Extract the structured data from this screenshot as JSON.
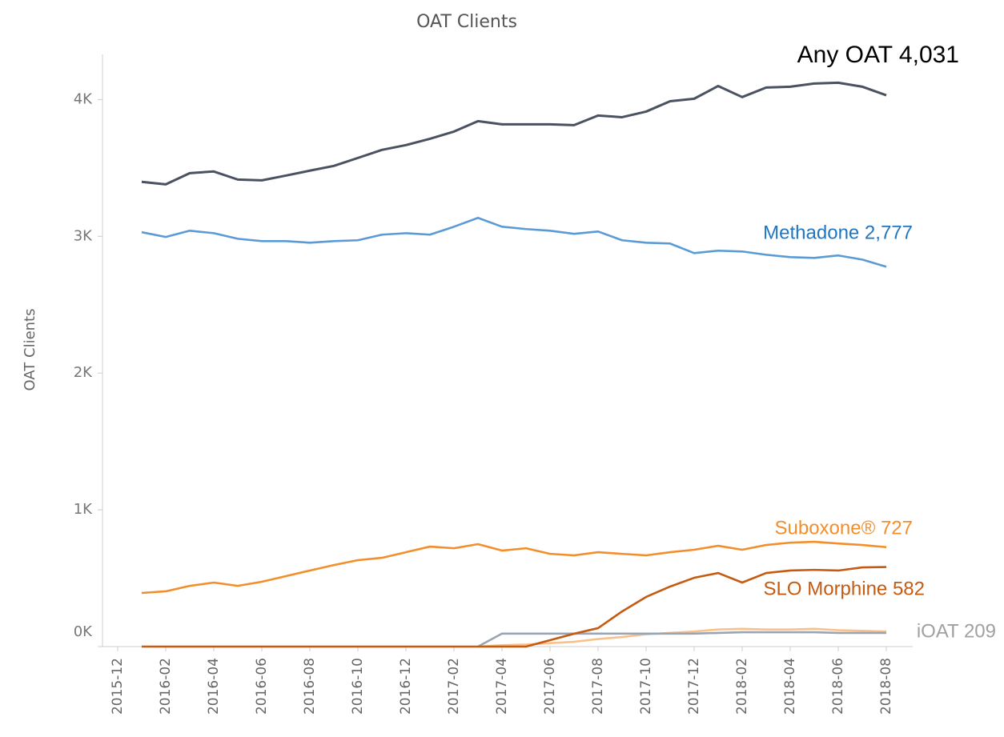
{
  "chart_data": {
    "type": "line",
    "title": "OAT Clients",
    "y_label": "OAT Clients",
    "x": [
      "2016-01",
      "2016-02",
      "2016-03",
      "2016-04",
      "2016-05",
      "2016-06",
      "2016-07",
      "2016-08",
      "2016-09",
      "2016-10",
      "2016-11",
      "2016-12",
      "2017-01",
      "2017-02",
      "2017-03",
      "2017-04",
      "2017-05",
      "2017-06",
      "2017-07",
      "2017-08",
      "2017-09",
      "2017-10",
      "2017-11",
      "2017-12",
      "2018-01",
      "2018-02",
      "2018-03",
      "2018-04",
      "2018-05",
      "2018-06",
      "2018-07",
      "2018-08"
    ],
    "xticks": [
      "2015-12",
      "2016-02",
      "2016-04",
      "2016-06",
      "2016-08",
      "2016-10",
      "2016-12",
      "2017-02",
      "2017-04",
      "2017-06",
      "2017-08",
      "2017-10",
      "2017-12",
      "2018-02",
      "2018-04",
      "2018-06",
      "2018-08"
    ],
    "ylim": [
      0,
      4330
    ],
    "yticks": [
      {
        "value": 0,
        "label": "0K"
      },
      {
        "value": 1000,
        "label": "1K"
      },
      {
        "value": 2000,
        "label": "2K"
      },
      {
        "value": 3000,
        "label": "3K"
      },
      {
        "value": 4000,
        "label": "4K"
      }
    ],
    "series": [
      {
        "name": "Any OAT 4,031",
        "color": "#4a5261",
        "values": [
          3398,
          3380,
          3462,
          3474,
          3415,
          3409,
          3444,
          3480,
          3515,
          3573,
          3632,
          3667,
          3713,
          3766,
          3842,
          3819,
          3819,
          3819,
          3813,
          3883,
          3871,
          3912,
          3988,
          4006,
          4099,
          4018,
          4088,
          4094,
          4117,
          4123,
          4094,
          4031
        ]
      },
      {
        "name": "Methadone 2,777",
        "color": "#5b9bd5",
        "values": [
          3030,
          2995,
          3041,
          3023,
          2982,
          2965,
          2965,
          2953,
          2965,
          2971,
          3012,
          3023,
          3012,
          3070,
          3135,
          3070,
          3053,
          3041,
          3018,
          3035,
          2971,
          2953,
          2947,
          2877,
          2895,
          2889,
          2865,
          2848,
          2842,
          2860,
          2830,
          2777
        ]
      },
      {
        "name": "Suboxone® 727",
        "color": "#f28e2b",
        "values": [
          392,
          404,
          444,
          468,
          444,
          474,
          515,
          556,
          596,
          632,
          649,
          690,
          731,
          719,
          749,
          702,
          719,
          678,
          667,
          690,
          678,
          667,
          690,
          708,
          737,
          708,
          743,
          760,
          766,
          754,
          743,
          727
        ]
      },
      {
        "color": "#f9c08a",
        "values": [
          null,
          null,
          null,
          null,
          null,
          null,
          null,
          null,
          null,
          null,
          null,
          null,
          null,
          null,
          0,
          10,
          15,
          25,
          35,
          55,
          70,
          90,
          100,
          110,
          125,
          130,
          125,
          125,
          130,
          120,
          115,
          110
        ]
      },
      {
        "name": "iOAT 209",
        "color": "#9aa5b4",
        "values": [
          null,
          null,
          null,
          null,
          null,
          null,
          null,
          null,
          null,
          null,
          null,
          null,
          null,
          null,
          0,
          95,
          95,
          95,
          95,
          95,
          95,
          95,
          95,
          95,
          100,
          105,
          105,
          105,
          105,
          100,
          100,
          100
        ]
      },
      {
        "name": "SLO Morphine 582",
        "color": "#c55a11",
        "values": [
          0,
          0,
          0,
          0,
          0,
          0,
          0,
          0,
          0,
          0,
          0,
          0,
          0,
          0,
          0,
          0,
          0,
          47,
          94,
          135,
          257,
          363,
          439,
          503,
          538,
          468,
          538,
          556,
          561,
          556,
          579,
          582
        ]
      }
    ]
  }
}
